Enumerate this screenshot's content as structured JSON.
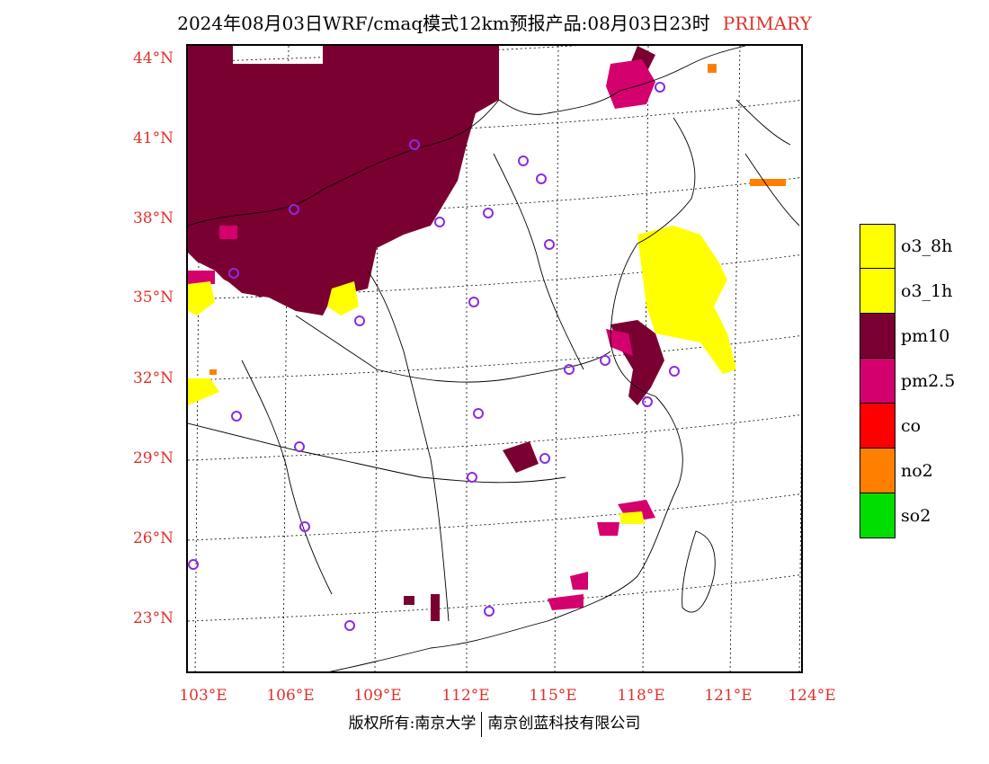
{
  "title": {
    "text": "2024年08月03日WRF/cmaq模式12km预报产品:08月03日23时",
    "tag": "PRIMARY"
  },
  "map": {
    "lat_labels": [
      "44°N",
      "41°N",
      "38°N",
      "35°N",
      "32°N",
      "29°N",
      "26°N",
      "23°N"
    ],
    "lon_labels": [
      "103°E",
      "106°E",
      "109°E",
      "112°E",
      "115°E",
      "118°E",
      "121°E",
      "124°E"
    ],
    "colors": {
      "o3_8h": "#ffff00",
      "o3_1h": "#ffff00",
      "pm10": "#7b0032",
      "pm2_5": "#d4006e",
      "co": "#ff0000",
      "no2": "#ff8000",
      "so2": "#00dd00",
      "station": "#8a2be2",
      "axis_label": "#e0302b"
    }
  },
  "legend": [
    {
      "label": "o3_8h",
      "color": "#ffff00"
    },
    {
      "label": "o3_1h",
      "color": "#ffff00"
    },
    {
      "label": "pm10",
      "color": "#7b0032"
    },
    {
      "label": "pm2.5",
      "color": "#d4006e"
    },
    {
      "label": "co",
      "color": "#ff0000"
    },
    {
      "label": "no2",
      "color": "#ff8000"
    },
    {
      "label": "so2",
      "color": "#00dd00"
    }
  ],
  "footer": {
    "left": "版权所有:南京大学",
    "right": "南京创蓝科技有限公司"
  }
}
